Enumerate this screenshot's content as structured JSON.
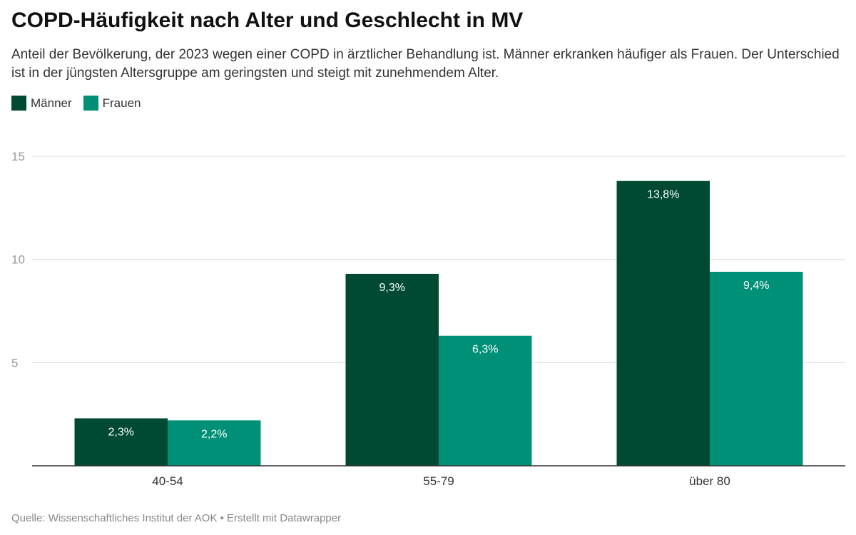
{
  "title": "COPD-Häufigkeit nach Alter und Geschlecht in MV",
  "subtitle": "Anteil der Bevölkerung, der 2023 wegen einer COPD in ärztlicher Behandlung ist. Männer erkranken häufiger als Frauen. Der Unterschied ist in der jüngsten Altersgruppe am geringsten und steigt mit zunehmendem Alter.",
  "source": "Quelle: Wissenschaftliches Institut der AOK • Erstellt mit Datawrapper",
  "chart_data": {
    "type": "bar",
    "categories": [
      "40-54",
      "55-79",
      "über 80"
    ],
    "series": [
      {
        "name": "Männer",
        "color": "#004a33",
        "values": [
          2.3,
          9.3,
          13.8
        ],
        "labels": [
          "2,3%",
          "9,3%",
          "13,8%"
        ]
      },
      {
        "name": "Frauen",
        "color": "#009077",
        "values": [
          2.2,
          6.3,
          9.4
        ],
        "labels": [
          "2,2%",
          "6,3%",
          "9,4%"
        ]
      }
    ],
    "ylim": [
      0,
      15
    ],
    "yticks": [
      5,
      10,
      15
    ],
    "grid": true,
    "legend": "top-left"
  }
}
